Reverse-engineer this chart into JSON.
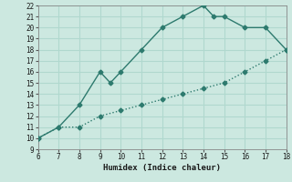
{
  "line1_x": [
    6,
    7,
    8,
    9,
    9.5,
    10,
    11,
    12,
    13,
    14,
    14.5,
    15,
    16,
    17,
    18
  ],
  "line1_y": [
    10,
    11,
    13,
    16,
    15,
    16,
    18,
    20,
    21,
    22,
    21,
    21,
    20,
    20,
    18
  ],
  "line2_x": [
    6,
    7,
    8,
    9,
    10,
    11,
    12,
    13,
    14,
    15,
    16,
    17,
    18
  ],
  "line2_y": [
    10,
    11,
    11,
    12,
    12.5,
    13,
    13.5,
    14,
    14.5,
    15,
    16,
    17,
    18
  ],
  "line_color": "#2d7a6e",
  "bg_color": "#cce8e0",
  "grid_color": "#b0d8ce",
  "xlabel": "Humidex (Indice chaleur)",
  "xlim": [
    6,
    18
  ],
  "ylim": [
    9,
    22
  ],
  "xticks": [
    6,
    7,
    8,
    9,
    10,
    11,
    12,
    13,
    14,
    15,
    16,
    17,
    18
  ],
  "yticks": [
    9,
    10,
    11,
    12,
    13,
    14,
    15,
    16,
    17,
    18,
    19,
    20,
    21,
    22
  ],
  "marker_size": 2.5,
  "line_width": 1.0
}
